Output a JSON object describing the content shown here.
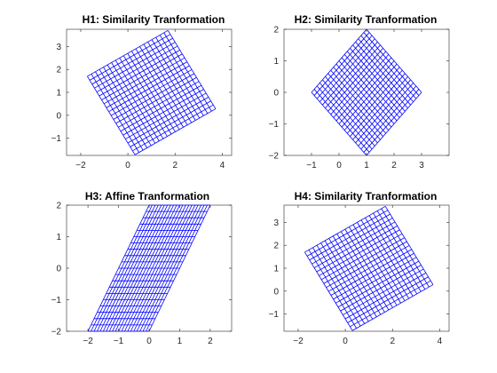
{
  "chart_data": [
    {
      "type": "line",
      "title": "H1: Similarity Tranformation",
      "xlim": [
        -2.6,
        4.4
      ],
      "ylim": [
        -1.75,
        3.75
      ],
      "xticks": [
        -2,
        0,
        2,
        4
      ],
      "yticks": [
        -1,
        0,
        1,
        2,
        3
      ],
      "grid": false,
      "line_color": "#0000ff",
      "mesh": {
        "divisions": 20,
        "corners": [
          [
            0.3,
            -1.72
          ],
          [
            3.72,
            0.28
          ],
          [
            1.7,
            3.7
          ],
          [
            -1.72,
            1.7
          ]
        ]
      }
    },
    {
      "type": "line",
      "title": "H2: Similarity Tranformation",
      "xlim": [
        -2,
        4
      ],
      "ylim": [
        -2,
        2
      ],
      "xticks": [
        -1,
        0,
        1,
        2,
        3
      ],
      "yticks": [
        -2,
        -1,
        0,
        1,
        2
      ],
      "grid": false,
      "line_color": "#0000ff",
      "mesh": {
        "divisions": 20,
        "corners": [
          [
            1,
            -2
          ],
          [
            3,
            0
          ],
          [
            1,
            2
          ],
          [
            -1,
            0
          ]
        ]
      }
    },
    {
      "type": "line",
      "title": "H3: Affine Tranformation",
      "xlim": [
        -2.7,
        2.7
      ],
      "ylim": [
        -2,
        2
      ],
      "xticks": [
        -2,
        -1,
        0,
        1,
        2
      ],
      "yticks": [
        -2,
        -1,
        0,
        1,
        2
      ],
      "grid": false,
      "line_color": "#0000ff",
      "mesh": {
        "divisions": 20,
        "corners": [
          [
            -2,
            -2
          ],
          [
            0,
            -2
          ],
          [
            2,
            2
          ],
          [
            0,
            2
          ]
        ]
      }
    },
    {
      "type": "line",
      "title": "H4: Similarity Tranformation",
      "xlim": [
        -2.6,
        4.4
      ],
      "ylim": [
        -1.75,
        3.75
      ],
      "xticks": [
        -2,
        0,
        2,
        4
      ],
      "yticks": [
        -1,
        0,
        1,
        2,
        3
      ],
      "grid": false,
      "line_color": "#0000ff",
      "mesh": {
        "divisions": 20,
        "corners": [
          [
            0.3,
            -1.72
          ],
          [
            3.72,
            0.28
          ],
          [
            1.7,
            3.7
          ],
          [
            -1.72,
            1.7
          ]
        ]
      }
    }
  ]
}
